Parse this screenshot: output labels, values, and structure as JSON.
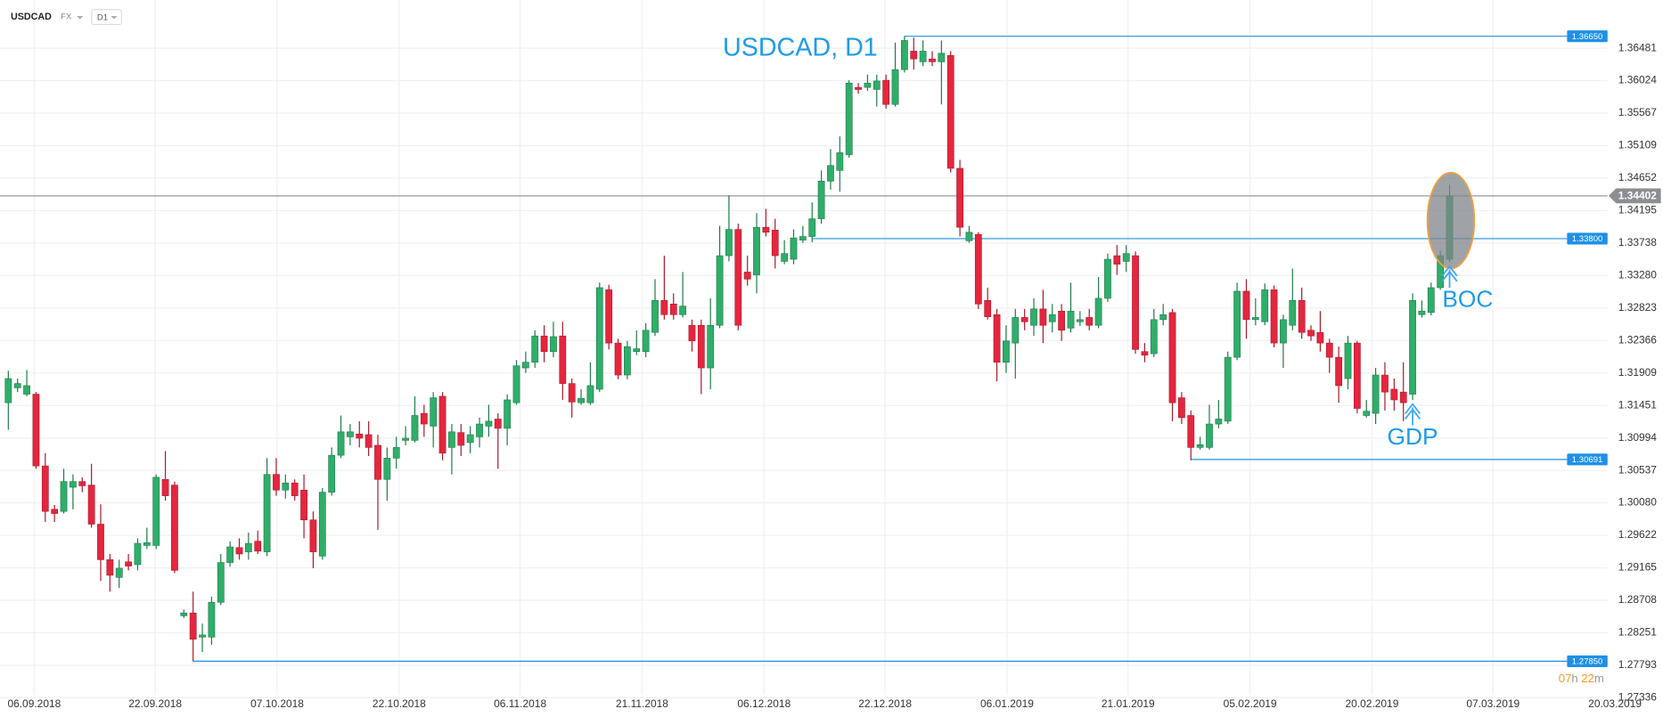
{
  "chart_data": {
    "type": "candlestick",
    "symbol": "USDCAD",
    "market": "FX",
    "timeframe": "D1",
    "title": "USDCAD, D1",
    "colors": {
      "up": "#2fae6a",
      "down": "#e5263e",
      "level": "#1e90e6",
      "last": "#8a8f94"
    },
    "open": [
      1.3149,
      1.317,
      1.3161,
      1.3161,
      1.306,
      1.2999,
      1.2996,
      1.303,
      1.3038,
      1.3033,
      1.2978,
      1.2928,
      1.2903,
      1.2925,
      1.2921,
      1.2948,
      1.2948,
      1.3041,
      1.3033,
      1.2849,
      1.2853,
      1.2819,
      1.2819,
      1.2868,
      1.2924,
      1.2945,
      1.2939,
      1.2954,
      1.2939,
      1.3048,
      1.3026,
      1.3036,
      1.3026,
      1.2984,
      1.2933,
      1.3023,
      1.3075,
      1.3101,
      1.3105,
      1.3104,
      1.3089,
      1.3041,
      1.3071,
      1.3096,
      1.3096,
      1.3134,
      1.3116,
      1.3158,
      1.3086,
      1.3107,
      1.3093,
      1.3101,
      1.3116,
      1.3126,
      1.3113,
      1.3149,
      1.3198,
      1.3206,
      1.3243,
      1.3221,
      1.3243,
      1.3176,
      1.3149,
      1.3149,
      1.3168,
      1.3308,
      1.3233,
      1.3188,
      1.3221,
      1.3221,
      1.3248,
      1.3293,
      1.3288,
      1.3273,
      1.3258,
      1.3258,
      1.3198,
      1.3258,
      1.3356,
      1.3393,
      1.3333,
      1.3329,
      1.3396,
      1.3392,
      1.3348,
      1.3351,
      1.3378,
      1.3383,
      1.3408,
      1.3461,
      1.3476,
      1.3498,
      1.3593,
      1.3593,
      1.359,
      1.3603,
      1.3569,
      1.3618,
      1.3644,
      1.3629,
      1.3633,
      1.3629,
      1.3638,
      1.3479,
      1.3377,
      1.3386,
      1.3293,
      1.3273,
      1.3206,
      1.3233,
      1.3269,
      1.3258,
      1.3281,
      1.3263,
      1.3278,
      1.3254,
      1.3263,
      1.3269,
      1.3258,
      1.3296,
      1.3356,
      1.3348,
      1.3356,
      1.3221,
      1.3218,
      1.3266,
      1.3276,
      1.3156,
      1.3131,
      1.3086,
      1.3086,
      1.3119,
      1.3123,
      1.3213,
      1.3306,
      1.3266,
      1.3263,
      1.3308,
      1.3233,
      1.3258,
      1.3293,
      1.3251,
      1.3248,
      1.3233,
      1.3213,
      1.3183,
      1.3233,
      1.3131,
      1.3134,
      1.3188,
      1.3168,
      1.3164,
      1.3161,
      1.3273,
      1.3276,
      1.3311,
      1.3351
    ],
    "high": [
      1.3194,
      1.3183,
      1.3195,
      1.3164,
      1.3078,
      1.3005,
      1.3056,
      1.3048,
      1.3044,
      1.3063,
      1.3006,
      1.2936,
      1.2928,
      1.2936,
      1.2958,
      1.2973,
      1.3048,
      1.3081,
      1.3038,
      1.2858,
      1.2883,
      1.2838,
      1.2876,
      1.2936,
      1.2954,
      1.2958,
      1.2966,
      1.2969,
      1.3071,
      1.3071,
      1.3048,
      1.3041,
      1.3048,
      1.2996,
      1.3029,
      1.3086,
      1.3131,
      1.3119,
      1.3123,
      1.3123,
      1.3104,
      1.3086,
      1.3101,
      1.3116,
      1.3158,
      1.3146,
      1.3164,
      1.3164,
      1.3119,
      1.3119,
      1.3116,
      1.3128,
      1.3146,
      1.3134,
      1.3161,
      1.3209,
      1.3221,
      1.3251,
      1.3258,
      1.3263,
      1.3263,
      1.3183,
      1.3168,
      1.3206,
      1.3318,
      1.3315,
      1.3239,
      1.3236,
      1.3251,
      1.3261,
      1.3323,
      1.3356,
      1.3303,
      1.3333,
      1.3266,
      1.3266,
      1.3296,
      1.3398,
      1.3441,
      1.3401,
      1.3356,
      1.3416,
      1.3422,
      1.3408,
      1.3378,
      1.3393,
      1.3398,
      1.3431,
      1.3476,
      1.3506,
      1.3524,
      1.3603,
      1.3599,
      1.3611,
      1.3611,
      1.3611,
      1.3656,
      1.3665,
      1.3663,
      1.3659,
      1.3644,
      1.3659,
      1.3644,
      1.3491,
      1.3398,
      1.3389,
      1.3311,
      1.3281,
      1.3258,
      1.3281,
      1.3281,
      1.3296,
      1.3308,
      1.3288,
      1.3288,
      1.3318,
      1.3278,
      1.3281,
      1.3326,
      1.3359,
      1.3371,
      1.3371,
      1.3362,
      1.3233,
      1.3281,
      1.3288,
      1.3281,
      1.3164,
      1.3138,
      1.3101,
      1.3146,
      1.3153,
      1.3221,
      1.3318,
      1.3323,
      1.3296,
      1.3317,
      1.3314,
      1.3273,
      1.3338,
      1.3311,
      1.3258,
      1.3278,
      1.3239,
      1.3228,
      1.3243,
      1.3236,
      1.3153,
      1.3198,
      1.3206,
      1.3183,
      1.3206,
      1.3303,
      1.3293,
      1.3318,
      1.3363,
      1.3456
    ],
    "low": [
      1.3111,
      1.3164,
      1.3158,
      1.3056,
      1.2981,
      1.2981,
      1.2993,
      1.2999,
      1.3023,
      1.2973,
      1.2898,
      1.2883,
      1.2888,
      1.2913,
      1.2913,
      1.2943,
      1.2943,
      1.3011,
      1.2909,
      1.2846,
      1.2785,
      1.2798,
      1.2808,
      1.2864,
      1.2918,
      1.2928,
      1.2928,
      1.2936,
      1.2933,
      1.3018,
      1.3014,
      1.3011,
      1.2958,
      1.2916,
      1.2928,
      1.3018,
      1.3071,
      1.3089,
      1.3086,
      1.3074,
      1.297,
      1.3011,
      1.3056,
      1.3089,
      1.3093,
      1.3101,
      1.3086,
      1.3068,
      1.3048,
      1.3074,
      1.3078,
      1.3086,
      1.3101,
      1.3056,
      1.3089,
      1.3146,
      1.3191,
      1.3198,
      1.3206,
      1.3213,
      1.3153,
      1.3128,
      1.3146,
      1.3146,
      1.3164,
      1.3224,
      1.3182,
      1.3182,
      1.3216,
      1.3213,
      1.3243,
      1.3266,
      1.3266,
      1.3269,
      1.3221,
      1.3161,
      1.3168,
      1.3254,
      1.3348,
      1.3251,
      1.3314,
      1.3303,
      1.3383,
      1.3338,
      1.3344,
      1.3344,
      1.3374,
      1.3375,
      1.3401,
      1.3449,
      1.3446,
      1.3494,
      1.3584,
      1.3588,
      1.3566,
      1.3563,
      1.3566,
      1.3614,
      1.3618,
      1.3623,
      1.3623,
      1.3569,
      1.3473,
      1.3383,
      1.3374,
      1.3281,
      1.3266,
      1.3179,
      1.3191,
      1.3183,
      1.3251,
      1.3243,
      1.3233,
      1.3248,
      1.3236,
      1.3248,
      1.3257,
      1.3251,
      1.3254,
      1.3291,
      1.3329,
      1.3333,
      1.3218,
      1.3206,
      1.3213,
      1.3258,
      1.3123,
      1.3119,
      1.3068,
      1.3083,
      1.3083,
      1.3113,
      1.3119,
      1.3209,
      1.3239,
      1.3258,
      1.3258,
      1.3227,
      1.3198,
      1.3251,
      1.3239,
      1.3236,
      1.3221,
      1.3191,
      1.3149,
      1.3168,
      1.3134,
      1.3128,
      1.3119,
      1.3138,
      1.3138,
      1.3123,
      1.3153,
      1.3269,
      1.3272,
      1.3308,
      1.3347
    ],
    "close": [
      1.3183,
      1.3176,
      1.3173,
      1.306,
      1.2996,
      1.2993,
      1.3038,
      1.3038,
      1.3032,
      1.2978,
      1.2928,
      1.2906,
      1.2916,
      1.2919,
      1.2951,
      1.2952,
      1.3044,
      1.3018,
      1.2913,
      1.2853,
      1.2816,
      1.2822,
      1.2868,
      1.2924,
      1.2946,
      1.2936,
      1.2951,
      1.294,
      1.3048,
      1.3026,
      1.3036,
      1.3018,
      1.2984,
      1.2939,
      1.3023,
      1.3075,
      1.3108,
      1.3108,
      1.3099,
      1.3086,
      1.3041,
      1.3071,
      1.3086,
      1.3099,
      1.3131,
      1.3119,
      1.3156,
      1.3078,
      1.3108,
      1.3089,
      1.3104,
      1.3119,
      1.3123,
      1.3113,
      1.3153,
      1.3201,
      1.3206,
      1.3243,
      1.3221,
      1.3242,
      1.3176,
      1.315,
      1.3155,
      1.3173,
      1.3311,
      1.3233,
      1.3188,
      1.3228,
      1.3225,
      1.3251,
      1.3293,
      1.3273,
      1.3273,
      1.3285,
      1.3236,
      1.3198,
      1.3258,
      1.3356,
      1.3393,
      1.3258,
      1.3323,
      1.3396,
      1.3389,
      1.3356,
      1.3359,
      1.3381,
      1.3383,
      1.3408,
      1.3461,
      1.3483,
      1.3501,
      1.3599,
      1.359,
      1.3599,
      1.3602,
      1.3569,
      1.3618,
      1.3659,
      1.3633,
      1.3644,
      1.3629,
      1.3641,
      1.3479,
      1.3396,
      1.3389,
      1.3288,
      1.327,
      1.3206,
      1.3236,
      1.3269,
      1.3263,
      1.3281,
      1.3258,
      1.3273,
      1.3251,
      1.3278,
      1.3266,
      1.3258,
      1.3296,
      1.3351,
      1.3344,
      1.3359,
      1.3224,
      1.3216,
      1.3266,
      1.3273,
      1.3149,
      1.3128,
      1.3086,
      1.309,
      1.3119,
      1.3126,
      1.3213,
      1.3306,
      1.3266,
      1.3269,
      1.3308,
      1.3233,
      1.3266,
      1.3293,
      1.3248,
      1.3243,
      1.3233,
      1.3213,
      1.3173,
      1.3233,
      1.3141,
      1.3137,
      1.3188,
      1.3164,
      1.3153,
      1.3149,
      1.3293,
      1.3278,
      1.3311,
      1.3356,
      1.344
    ],
    "xlim": [
      -0.9,
      173.1
    ],
    "xticks": [
      {
        "value": 2.8,
        "label": "06.09.2018"
      },
      {
        "value": 15.9,
        "label": "22.09.2018"
      },
      {
        "value": 29.1,
        "label": "07.10.2018"
      },
      {
        "value": 42.3,
        "label": "22.10.2018"
      },
      {
        "value": 55.4,
        "label": "06.11.2018"
      },
      {
        "value": 68.6,
        "label": "21.11.2018"
      },
      {
        "value": 81.8,
        "label": "06.12.2018"
      },
      {
        "value": 94.9,
        "label": "22.12.2018"
      },
      {
        "value": 108.1,
        "label": "06.01.2019"
      },
      {
        "value": 121.2,
        "label": "21.01.2019"
      },
      {
        "value": 134.4,
        "label": "05.02.2019"
      },
      {
        "value": 147.6,
        "label": "20.02.2019"
      },
      {
        "value": 160.7,
        "label": "07.03.2019"
      },
      {
        "value": 173.9,
        "label": "20.03.2019"
      }
    ],
    "ylim": [
      1.2738,
      1.3716
    ],
    "yticks": [
      1.36481,
      1.36024,
      1.35567,
      1.35109,
      1.34652,
      1.34195,
      1.33738,
      {
        "value": 1.3328,
        "label": "1.33280"
      },
      1.32823,
      1.32366,
      1.31909,
      1.31451,
      1.30994,
      1.30537,
      {
        "value": 1.3008,
        "label": "1.30080"
      },
      1.29622,
      1.29165,
      1.28708,
      1.28251,
      1.27793,
      1.27336
    ],
    "grid": true,
    "levels": [
      {
        "value": 1.3665,
        "label": "1.36650",
        "x_start": 97
      },
      {
        "value": 1.338,
        "label": "1.33800",
        "x_start": 87
      },
      {
        "value": 1.30691,
        "label": "1.30691",
        "x_start": 128
      },
      {
        "value": 1.2785,
        "label": "1.27850",
        "x_start": 20
      }
    ],
    "last_price": 1.34402,
    "annotations": [
      {
        "text": "BOC",
        "index": 156
      },
      {
        "text": "GDP",
        "index": 152
      }
    ],
    "countdown": {
      "hours": "07",
      "hours_unit": "h",
      "minutes": "22",
      "minutes_unit": "m"
    }
  }
}
